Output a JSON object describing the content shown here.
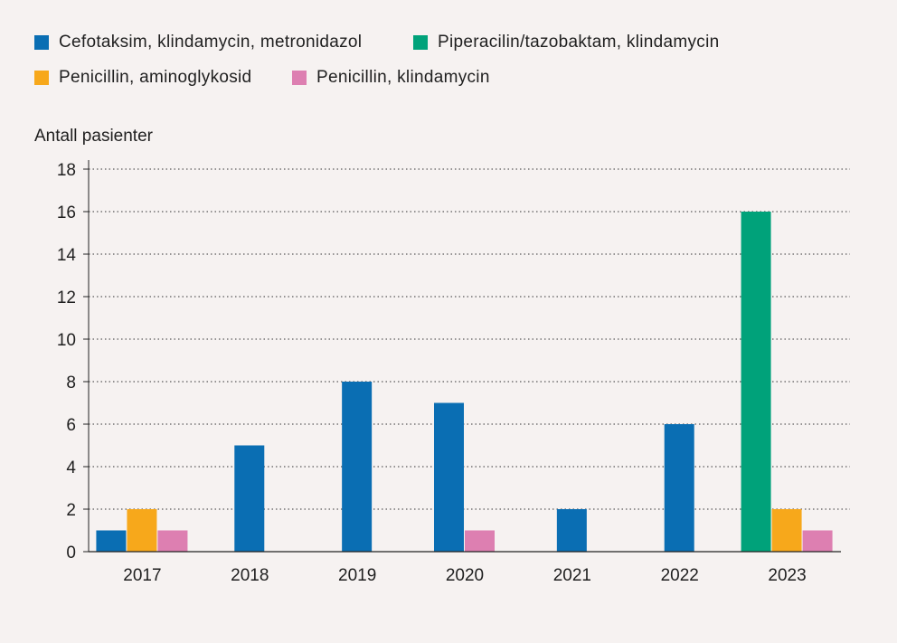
{
  "chart_data": {
    "type": "bar",
    "ylabel": "Antall pasienter",
    "ylim": [
      0,
      18
    ],
    "yticks": [
      "0",
      "2",
      "4",
      "6",
      "8",
      "10",
      "12",
      "14",
      "16",
      "18"
    ],
    "grid": true,
    "legend_position": "top",
    "categories": [
      "2017",
      "2018",
      "2019",
      "2020",
      "2021",
      "2022",
      "2023"
    ],
    "series": [
      {
        "name": "Cefotaksim, klindamycin, metronidazol",
        "color": "#0a6eb3",
        "values": [
          1,
          5,
          8,
          7,
          2,
          6,
          0
        ]
      },
      {
        "name": "Piperacilin/tazobaktam, klindamycin",
        "color": "#00a27a",
        "values": [
          0,
          0,
          0,
          0,
          0,
          0,
          16
        ]
      },
      {
        "name": "Penicillin, aminoglykosid",
        "color": "#f7a81b",
        "values": [
          2,
          0,
          0,
          0,
          0,
          0,
          2
        ]
      },
      {
        "name": "Penicillin, klindamycin",
        "color": "#dd7fb1",
        "values": [
          1,
          0,
          0,
          1,
          0,
          0,
          1
        ]
      }
    ]
  }
}
